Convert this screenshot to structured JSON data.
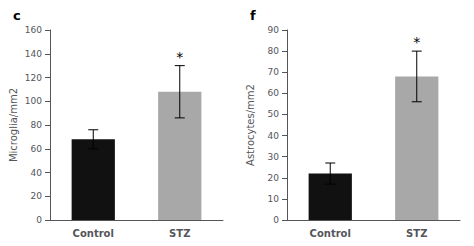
{
  "chart_data": [
    {
      "type": "bar",
      "title": "c",
      "categories": [
        "Control",
        "STZ"
      ],
      "values": [
        68,
        108
      ],
      "errors": [
        8,
        22
      ],
      "colors": [
        "#111111",
        "#a8a8a8"
      ],
      "ylabel": "Microglia/mm2",
      "ylim": [
        0,
        160
      ],
      "yticks": [
        0,
        20,
        40,
        60,
        80,
        100,
        120,
        140,
        160
      ],
      "grid": false,
      "annotations": [
        {
          "text": "*",
          "category": "STZ"
        }
      ]
    },
    {
      "type": "bar",
      "title": "f",
      "categories": [
        "Control",
        "STZ"
      ],
      "values": [
        22,
        68
      ],
      "errors": [
        5,
        12
      ],
      "colors": [
        "#111111",
        "#a8a8a8"
      ],
      "ylabel": "Astrocytes/mm2",
      "ylim": [
        0,
        90
      ],
      "yticks": [
        0,
        10,
        20,
        30,
        40,
        50,
        60,
        70,
        80,
        90
      ],
      "grid": false,
      "annotations": [
        {
          "text": "*",
          "category": "STZ"
        }
      ]
    }
  ]
}
